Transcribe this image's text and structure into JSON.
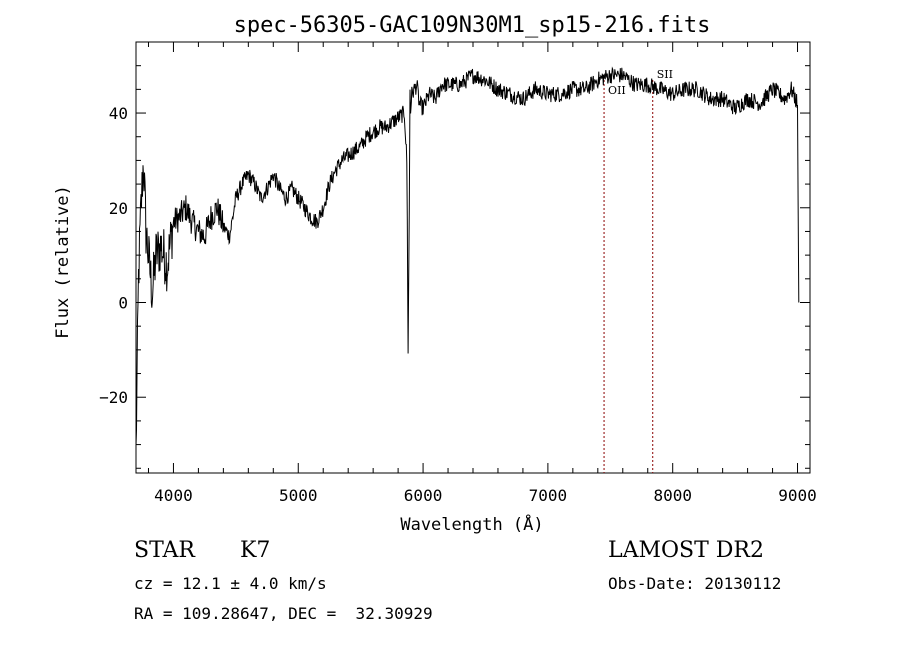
{
  "chart_data": {
    "type": "line",
    "title": "spec-56305-GAC109N30M1_sp15-216.fits",
    "xlabel": "Wavelength (Å)",
    "ylabel": "Flux (relative)",
    "xlim": [
      3700,
      9100
    ],
    "ylim": [
      -36,
      55
    ],
    "xticks": [
      4000,
      5000,
      6000,
      7000,
      8000,
      9000
    ],
    "yticks": [
      -20,
      0,
      20,
      40
    ],
    "x_tick_labels": [
      "4000",
      "5000",
      "6000",
      "7000",
      "8000",
      "9000"
    ],
    "y_tick_labels": [
      "−20",
      "0",
      "20",
      "40"
    ],
    "line_markers": [
      {
        "label": "OII",
        "wavelength": 7450
      },
      {
        "label": "SII",
        "wavelength": 7840
      }
    ],
    "series": [
      {
        "x": [
          3700,
          3720,
          3740,
          3760,
          3780,
          3800,
          3830,
          3860,
          3900,
          3950,
          4000,
          4050,
          4100,
          4150,
          4200,
          4250,
          4300,
          4350,
          4400,
          4450,
          4500,
          4550,
          4600,
          4650,
          4700,
          4750,
          4800,
          4850,
          4900,
          4950,
          5000,
          5050,
          5100,
          5150,
          5200,
          5250,
          5300,
          5350,
          5400,
          5450,
          5500,
          5550,
          5600,
          5650,
          5700,
          5750,
          5800,
          5850,
          5870,
          5880,
          5890,
          5895,
          5900,
          5910,
          5930,
          5950,
          5970,
          6000,
          6050,
          6100,
          6150,
          6200,
          6300,
          6400,
          6500,
          6600,
          6700,
          6800,
          6900,
          7000,
          7100,
          7200,
          7300,
          7400,
          7500,
          7600,
          7700,
          7800,
          7900,
          8000,
          8100,
          8200,
          8300,
          8400,
          8500,
          8600,
          8700,
          8800,
          8900,
          8950,
          9000,
          9005,
          9010
        ],
        "y": [
          -32,
          5,
          20,
          30,
          15,
          10,
          2,
          10,
          12,
          8,
          17,
          18,
          20,
          17,
          15,
          14,
          18,
          20,
          16,
          14,
          22,
          25,
          27,
          25,
          22,
          24,
          27,
          24,
          22,
          24,
          22,
          20,
          18,
          17,
          20,
          25,
          28,
          30,
          31,
          32,
          33,
          35,
          36,
          37,
          37,
          38,
          39,
          40,
          30,
          -10,
          20,
          45,
          40,
          44,
          45,
          46,
          42,
          41,
          44,
          43,
          46,
          46,
          46,
          48,
          47,
          45,
          44,
          43,
          45,
          44,
          44,
          45,
          45,
          47,
          48,
          48,
          46,
          46,
          45,
          44,
          45,
          45,
          43,
          43,
          41,
          43,
          42,
          45,
          43,
          45,
          42,
          20,
          0
        ]
      }
    ]
  },
  "info": {
    "object_type": "STAR",
    "subclass": "K7",
    "survey": "LAMOST DR2",
    "redshift": "cz = 12.1 ± 4.0 km/s",
    "obs_date": "Obs-Date: 20130112",
    "coords": "RA = 109.28647, DEC =  32.30929"
  }
}
